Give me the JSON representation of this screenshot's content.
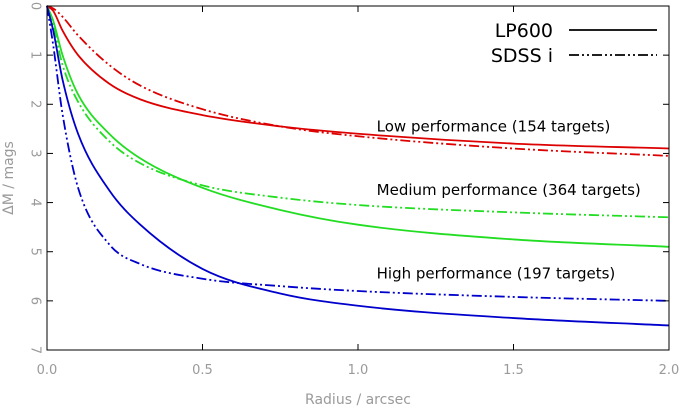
{
  "chart_data": {
    "type": "line",
    "title": "",
    "xlabel": "Radius / arcsec",
    "ylabel": "ΔM / mags",
    "xlim": [
      0.0,
      2.0
    ],
    "ylim": [
      0,
      7
    ],
    "y_inverted": true,
    "x_ticks": [
      "0.0",
      "0.5",
      "1.0",
      "1.5",
      "2.0"
    ],
    "y_ticks": [
      "0",
      "1",
      "2",
      "3",
      "4",
      "5",
      "6",
      "7"
    ],
    "legend": {
      "position": "top-right",
      "entries": [
        {
          "label": "LP600",
          "style": "solid"
        },
        {
          "label": "SDSS i",
          "style": "dash-dot-dot"
        }
      ]
    },
    "annotations": [
      {
        "text": "Low performance (154 targets)",
        "x": 1.06,
        "y": 2.55
      },
      {
        "text": "Medium performance (364 targets)",
        "x": 1.06,
        "y": 3.85
      },
      {
        "text": "High performance (197 targets)",
        "x": 1.06,
        "y": 5.55
      }
    ],
    "series": [
      {
        "name": "Low performance LP600",
        "color": "#dd0000",
        "style": "solid",
        "x": [
          0.0,
          0.02,
          0.05,
          0.1,
          0.2,
          0.3,
          0.5,
          0.75,
          1.0,
          1.5,
          2.0
        ],
        "y": [
          0.0,
          0.1,
          0.5,
          1.0,
          1.58,
          1.9,
          2.22,
          2.45,
          2.6,
          2.8,
          2.9
        ]
      },
      {
        "name": "Low performance SDSS i",
        "color": "#dd0000",
        "style": "dash-dot-dot",
        "x": [
          0.0,
          0.02,
          0.05,
          0.1,
          0.2,
          0.3,
          0.5,
          0.75,
          1.0,
          1.5,
          2.0
        ],
        "y": [
          0.0,
          0.05,
          0.22,
          0.6,
          1.2,
          1.62,
          2.1,
          2.45,
          2.65,
          2.9,
          3.05
        ]
      },
      {
        "name": "Medium performance LP600",
        "color": "#22dd22",
        "style": "solid",
        "x": [
          0.0,
          0.02,
          0.05,
          0.1,
          0.2,
          0.3,
          0.5,
          0.75,
          1.0,
          1.5,
          2.0
        ],
        "y": [
          0.0,
          0.3,
          1.0,
          1.8,
          2.6,
          3.1,
          3.7,
          4.15,
          4.45,
          4.75,
          4.9
        ]
      },
      {
        "name": "Medium performance SDSS i",
        "color": "#22dd22",
        "style": "dash-dot-dot",
        "x": [
          0.0,
          0.02,
          0.05,
          0.1,
          0.2,
          0.3,
          0.5,
          0.75,
          1.0,
          1.5,
          2.0
        ],
        "y": [
          0.0,
          0.4,
          1.2,
          1.95,
          2.75,
          3.2,
          3.65,
          3.9,
          4.05,
          4.2,
          4.3
        ]
      },
      {
        "name": "High performance LP600",
        "color": "#0000cc",
        "style": "solid",
        "x": [
          0.0,
          0.02,
          0.05,
          0.1,
          0.2,
          0.3,
          0.5,
          0.75,
          1.0,
          1.5,
          2.0
        ],
        "y": [
          0.0,
          0.5,
          1.5,
          2.6,
          3.75,
          4.45,
          5.35,
          5.85,
          6.1,
          6.35,
          6.5
        ]
      },
      {
        "name": "High performance SDSS i",
        "color": "#0000cc",
        "style": "dash-dot-dot",
        "x": [
          0.0,
          0.02,
          0.05,
          0.1,
          0.2,
          0.3,
          0.5,
          0.75,
          1.0,
          1.5,
          2.0
        ],
        "y": [
          0.0,
          0.8,
          2.2,
          3.7,
          4.85,
          5.25,
          5.55,
          5.7,
          5.8,
          5.92,
          6.0
        ]
      }
    ]
  }
}
